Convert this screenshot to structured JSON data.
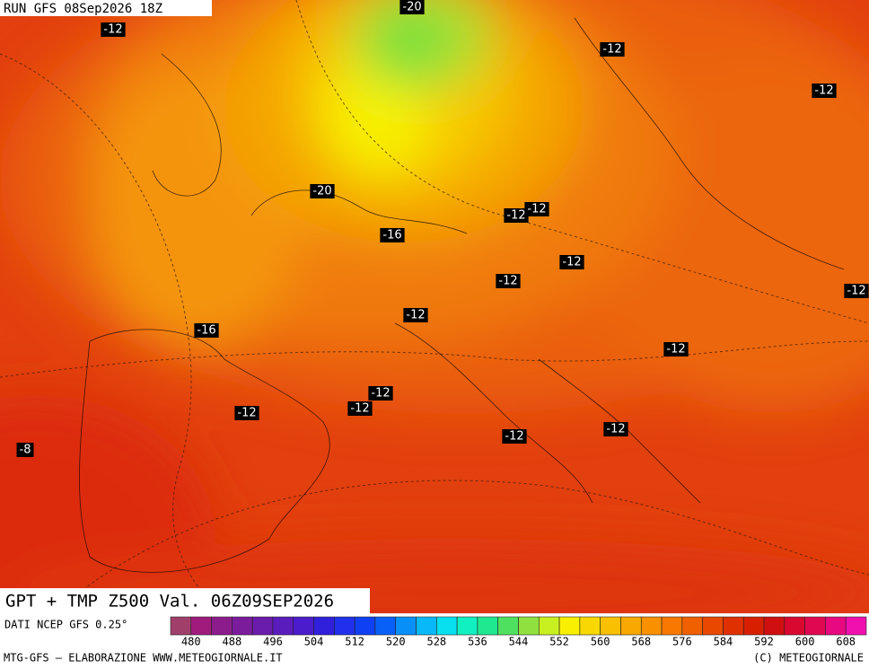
{
  "header": {
    "run": "RUN GFS 08Sep2026 18Z"
  },
  "map": {
    "labels": [
      "-12",
      "-20",
      "-12",
      "-12",
      "-20",
      "-12",
      "-12",
      "-16",
      "-12",
      "-12",
      "-12",
      "-12",
      "-16",
      "-12",
      "-12",
      "-12",
      "-12",
      "-12",
      "-12",
      "-8"
    ]
  },
  "title": "GPT + TMP Z500 Val. 06Z09SEP2026",
  "legend": {
    "source": "DATI NCEP GFS 0.25°",
    "colors": [
      "#a0406a",
      "#a01c7c",
      "#8c1c8c",
      "#7a1c9c",
      "#6a1cac",
      "#5a1cbc",
      "#4a1ccc",
      "#3020dc",
      "#2030ec",
      "#1040f4",
      "#0860f8",
      "#0890f8",
      "#08b8f8",
      "#08e0f0",
      "#10f0c0",
      "#20e890",
      "#50e060",
      "#90e040",
      "#c8f020",
      "#f8f000",
      "#f8d800",
      "#f8c000",
      "#f8a800",
      "#f89000",
      "#f87800",
      "#f06000",
      "#e84800",
      "#e03000",
      "#d82000",
      "#d01010",
      "#d80830",
      "#e00850",
      "#e80880",
      "#f010b0"
    ],
    "ticks": [
      480,
      488,
      496,
      504,
      512,
      520,
      528,
      536,
      544,
      552,
      560,
      568,
      576,
      584,
      592,
      600,
      608
    ]
  },
  "footer": {
    "left": "MTG-GFS — ELABORAZIONE WWW.METEOGIORNALE.IT",
    "right": "(C) METEOGIORNALE"
  }
}
